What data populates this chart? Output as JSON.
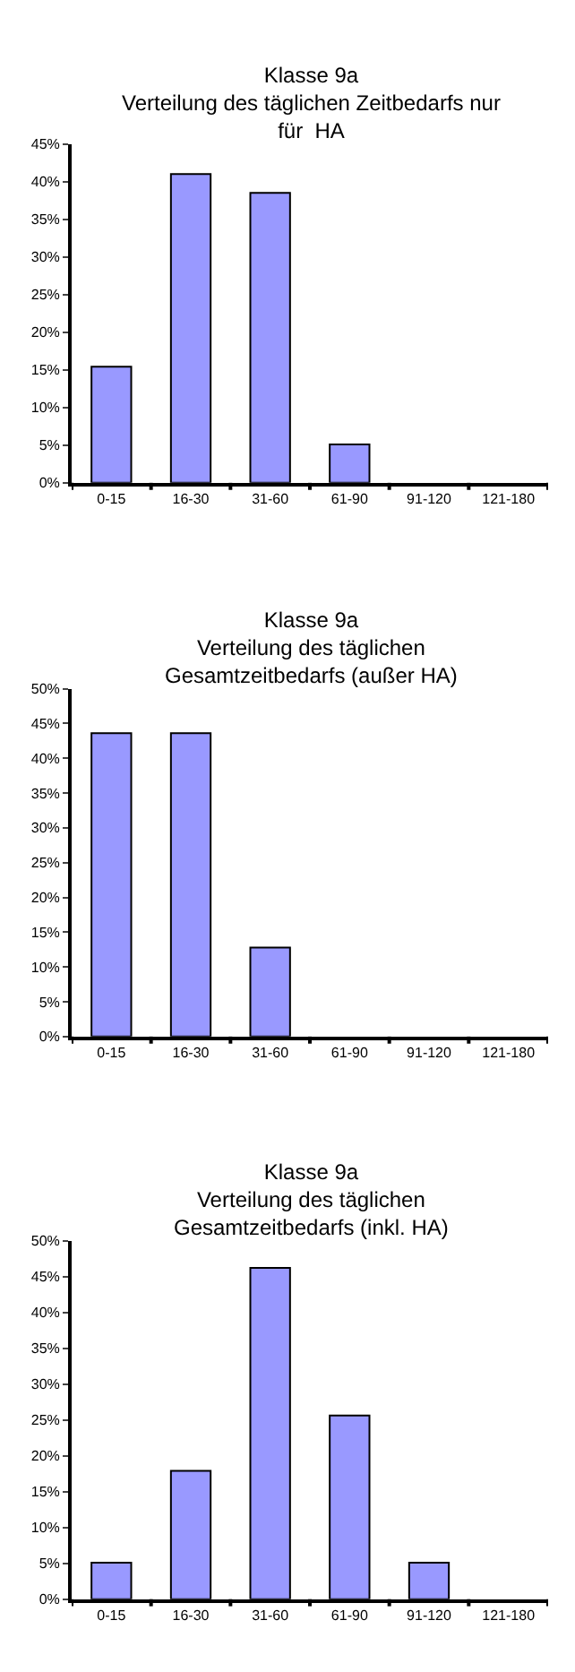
{
  "chart_data": [
    {
      "type": "bar",
      "title": "Klasse 9a\nVerteilung des täglichen Zeitbedarfs nur\nfür  HA",
      "categories": [
        "0-15",
        "16-30",
        "31-60",
        "61-90",
        "91-120",
        "121-180"
      ],
      "values": [
        15.4,
        41.0,
        38.5,
        5.1,
        0,
        0
      ],
      "color": "#9999ff",
      "ylim": [
        0,
        45
      ],
      "yticks": [
        {
          "value": 0,
          "label": "0%"
        },
        {
          "value": 5,
          "label": "5%"
        },
        {
          "value": 10,
          "label": "10%"
        },
        {
          "value": 15,
          "label": "15%"
        },
        {
          "value": 20,
          "label": "20%"
        },
        {
          "value": 25,
          "label": "25%"
        },
        {
          "value": 30,
          "label": "30%"
        },
        {
          "value": 35,
          "label": "35%"
        },
        {
          "value": 40,
          "label": "40%"
        },
        {
          "value": 45,
          "label": "45%"
        }
      ]
    },
    {
      "type": "bar",
      "title": "Klasse 9a\nVerteilung des täglichen\nGesamtzeitbedarfs (außer HA)",
      "categories": [
        "0-15",
        "16-30",
        "31-60",
        "61-90",
        "91-120",
        "121-180"
      ],
      "values": [
        43.6,
        43.6,
        12.8,
        0,
        0,
        0
      ],
      "color": "#9999ff",
      "ylim": [
        0,
        50
      ],
      "yticks": [
        {
          "value": 0,
          "label": "0%"
        },
        {
          "value": 5,
          "label": "5%"
        },
        {
          "value": 10,
          "label": "10%"
        },
        {
          "value": 15,
          "label": "15%"
        },
        {
          "value": 20,
          "label": "20%"
        },
        {
          "value": 25,
          "label": "25%"
        },
        {
          "value": 30,
          "label": "30%"
        },
        {
          "value": 35,
          "label": "35%"
        },
        {
          "value": 40,
          "label": "40%"
        },
        {
          "value": 45,
          "label": "45%"
        },
        {
          "value": 50,
          "label": "50%"
        }
      ]
    },
    {
      "type": "bar",
      "title": "Klasse 9a\nVerteilung des täglichen\nGesamtzeitbedarfs (inkl. HA)",
      "categories": [
        "0-15",
        "16-30",
        "31-60",
        "61-90",
        "91-120",
        "121-180"
      ],
      "values": [
        5.1,
        17.9,
        46.2,
        25.6,
        5.1,
        0
      ],
      "color": "#9999ff",
      "ylim": [
        0,
        50
      ],
      "yticks": [
        {
          "value": 0,
          "label": "0%"
        },
        {
          "value": 5,
          "label": "5%"
        },
        {
          "value": 10,
          "label": "10%"
        },
        {
          "value": 15,
          "label": "15%"
        },
        {
          "value": 20,
          "label": "20%"
        },
        {
          "value": 25,
          "label": "25%"
        },
        {
          "value": 30,
          "label": "30%"
        },
        {
          "value": 35,
          "label": "35%"
        },
        {
          "value": 40,
          "label": "40%"
        },
        {
          "value": 45,
          "label": "45%"
        },
        {
          "value": 50,
          "label": "50%"
        }
      ]
    }
  ]
}
